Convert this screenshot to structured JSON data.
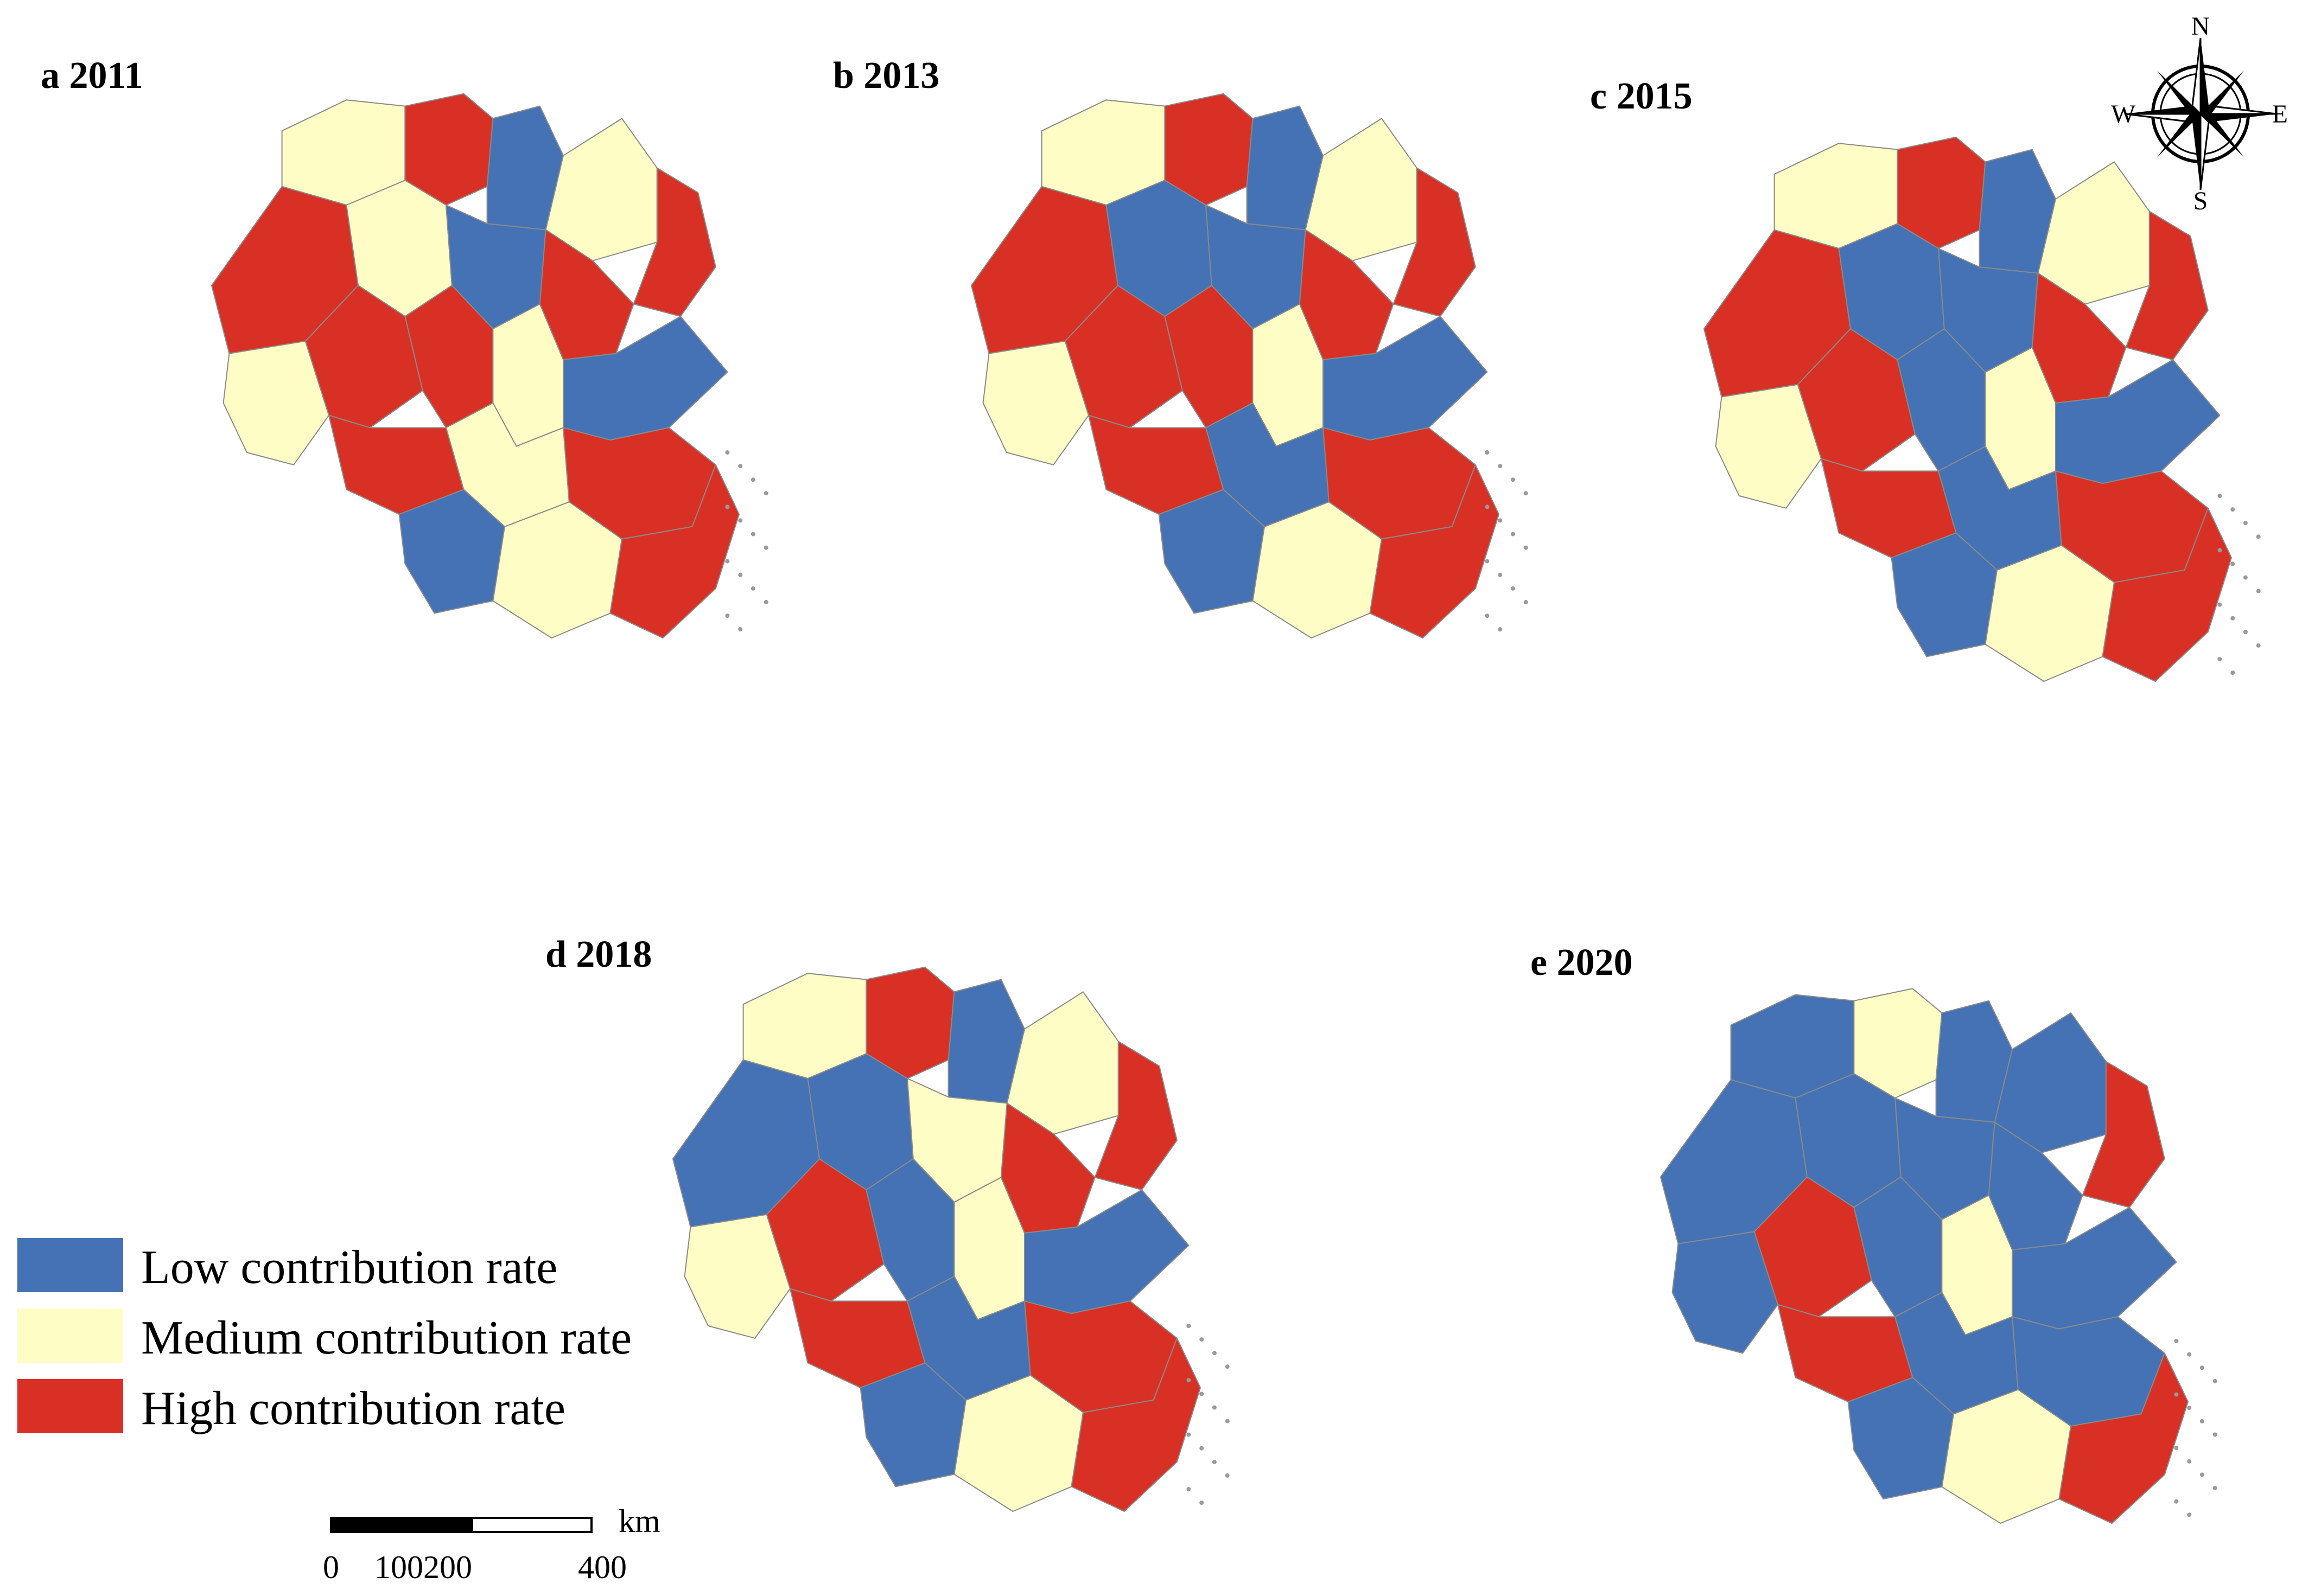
{
  "panels": [
    {
      "title": "a 2011"
    },
    {
      "title": "b 2013"
    },
    {
      "title": "c 2015"
    },
    {
      "title": "d 2018"
    },
    {
      "title": "e 2020"
    }
  ],
  "legend": {
    "items": [
      {
        "label": "Low contribution rate",
        "color": "#4472b4"
      },
      {
        "label": "Medium contribution rate",
        "color": "#fefdc6"
      },
      {
        "label": "High contribution rate",
        "color": "#d93025"
      }
    ]
  },
  "scale": {
    "unit": "km",
    "ticks": [
      "0",
      "100",
      "200",
      "400"
    ]
  },
  "compass": {
    "north": "N",
    "south": "S",
    "east": "E",
    "west": "W",
    "icon": "compass-rose-icon"
  },
  "colors": {
    "low": "#4472b4",
    "medium": "#fefdc6",
    "high": "#d93025",
    "outline": "#8a8a8a"
  },
  "region_classes": {
    "a_2011": [
      "M",
      "H",
      "L",
      "M",
      "H",
      "H",
      "M",
      "L",
      "H",
      "M",
      "H",
      "H",
      "M",
      "L",
      "H",
      "M",
      "H",
      "L",
      "M",
      "H"
    ],
    "b_2013": [
      "M",
      "H",
      "L",
      "M",
      "H",
      "H",
      "L",
      "L",
      "H",
      "M",
      "H",
      "H",
      "M",
      "L",
      "H",
      "L",
      "H",
      "L",
      "M",
      "H"
    ],
    "c_2015": [
      "M",
      "H",
      "L",
      "M",
      "H",
      "H",
      "L",
      "L",
      "H",
      "M",
      "H",
      "L",
      "M",
      "L",
      "H",
      "L",
      "H",
      "L",
      "M",
      "H"
    ],
    "d_2018": [
      "M",
      "H",
      "L",
      "M",
      "H",
      "L",
      "L",
      "M",
      "H",
      "M",
      "H",
      "L",
      "M",
      "L",
      "H",
      "L",
      "H",
      "L",
      "M",
      "H"
    ],
    "e_2020": [
      "L",
      "M",
      "L",
      "L",
      "H",
      "L",
      "L",
      "L",
      "L",
      "L",
      "H",
      "L",
      "M",
      "L",
      "H",
      "L",
      "L",
      "L",
      "M",
      "H"
    ]
  }
}
